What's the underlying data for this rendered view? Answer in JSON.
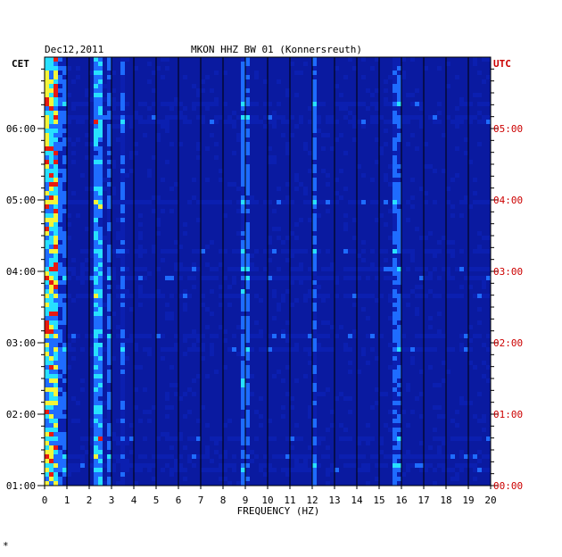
{
  "chart_data": {
    "type": "heatmap",
    "date": "Dec12,2011",
    "title": "MKON HHZ BW 01 (Konnersreuth)",
    "left_zone": "CET",
    "right_zone": "UTC",
    "xlabel": "FREQUENCY (HZ)",
    "x_ticks": [
      "0",
      "1",
      "2",
      "3",
      "4",
      "5",
      "6",
      "7",
      "8",
      "9",
      "10",
      "11",
      "12",
      "13",
      "14",
      "15",
      "16",
      "17",
      "18",
      "19",
      "20"
    ],
    "xlim": [
      0,
      20
    ],
    "cet_ticks": [
      "06:00",
      "05:00",
      "04:00",
      "03:00",
      "02:00",
      "01:00"
    ],
    "utc_ticks": [
      "05:00",
      "04:00",
      "03:00",
      "02:00",
      "01:00",
      "00:00"
    ],
    "time_range_utc_hours": [
      0,
      6
    ],
    "colors": {
      "background": "#0a1aa0",
      "low": "#0b1fb0",
      "mid": "#1e6cff",
      "cyan": "#27e0ff",
      "yellow": "#f5f53a",
      "red": "#e81a10",
      "utc_label": "#cc0000"
    },
    "energy_bands": [
      {
        "f_from": 0.0,
        "f_to": 0.6,
        "level": 0.75
      },
      {
        "f_from": 0.6,
        "f_to": 1.0,
        "level": 0.35
      },
      {
        "f_from": 2.3,
        "f_to": 2.7,
        "level": 0.55
      },
      {
        "f_from": 2.9,
        "f_to": 3.1,
        "level": 0.35
      },
      {
        "f_from": 3.4,
        "f_to": 3.6,
        "level": 0.3
      },
      {
        "f_from": 8.9,
        "f_to": 9.3,
        "level": 0.4
      },
      {
        "f_from": 11.9,
        "f_to": 12.3,
        "level": 0.35
      },
      {
        "f_from": 15.6,
        "f_to": 16.0,
        "level": 0.35
      }
    ]
  },
  "footnote": "*"
}
